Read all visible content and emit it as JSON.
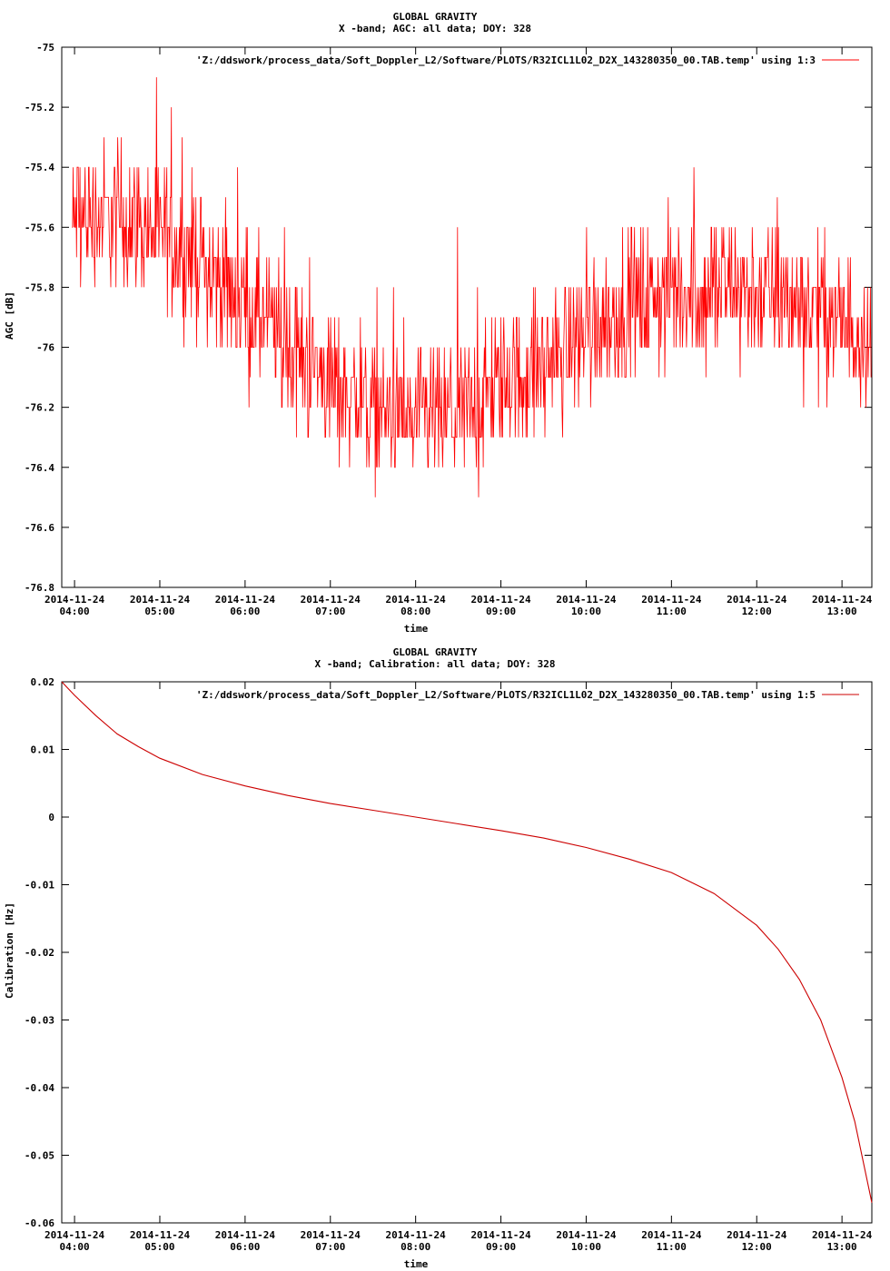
{
  "chart_data": [
    {
      "type": "line",
      "title": "GLOBAL GRAVITY",
      "subtitle": "X -band; AGC: all data; DOY: 328",
      "xlabel": "time",
      "ylabel": "AGC [dB]",
      "ylim": [
        -76.8,
        -75.0
      ],
      "yticks": [
        -75,
        -75.2,
        -75.4,
        -75.6,
        -75.8,
        -76,
        -76.2,
        -76.4,
        -76.6,
        -76.8
      ],
      "ytick_labels": [
        "-75",
        "-75.2",
        "-75.4",
        "-75.6",
        "-75.8",
        "-76",
        "-76.2",
        "-76.4",
        "-76.6",
        "-76.8"
      ],
      "xlim_hours": [
        3.85,
        13.35
      ],
      "xticks_hours": [
        4,
        5,
        6,
        7,
        8,
        9,
        10,
        11,
        12,
        13
      ],
      "xtick_date": "2014-11-24",
      "xtick_times": [
        "04:00",
        "05:00",
        "06:00",
        "07:00",
        "08:00",
        "09:00",
        "10:00",
        "11:00",
        "12:00",
        "13:00"
      ],
      "legend_position": "top-right",
      "color": "#ff0000",
      "series": [
        {
          "name": "'Z:/ddswork/process_data/Soft_Doppler_L2/Software/PLOTS/R32ICL1L02_D2X_143280350_00.TAB.temp' using 1:3",
          "trend_x_hours": [
            3.85,
            4.5,
            5.0,
            5.5,
            6.0,
            6.5,
            7.0,
            7.5,
            8.0,
            8.5,
            9.0,
            9.5,
            10.0,
            10.5,
            11.0,
            11.5,
            12.0,
            12.5,
            13.0,
            13.35
          ],
          "trend_y": [
            -75.6,
            -75.55,
            -75.62,
            -75.72,
            -75.85,
            -76.0,
            -76.12,
            -76.2,
            -76.25,
            -76.22,
            -76.12,
            -76.05,
            -75.95,
            -75.85,
            -75.82,
            -75.8,
            -75.82,
            -75.85,
            -75.92,
            -75.95
          ],
          "noise_range": 0.35,
          "samples": 1400
        }
      ]
    },
    {
      "type": "line",
      "title": "GLOBAL GRAVITY",
      "subtitle": "X -band; Calibration: all data; DOY: 328",
      "xlabel": "time",
      "ylabel": "Calibration [Hz]",
      "ylim": [
        -0.06,
        0.02
      ],
      "yticks": [
        0.02,
        0.01,
        0,
        -0.01,
        -0.02,
        -0.03,
        -0.04,
        -0.05,
        -0.06
      ],
      "ytick_labels": [
        "0.02",
        "0.01",
        "0",
        "-0.01",
        "-0.02",
        "-0.03",
        "-0.04",
        "-0.05",
        "-0.06"
      ],
      "xlim_hours": [
        3.85,
        13.35
      ],
      "xticks_hours": [
        4,
        5,
        6,
        7,
        8,
        9,
        10,
        11,
        12,
        13
      ],
      "xtick_date": "2014-11-24",
      "xtick_times": [
        "04:00",
        "05:00",
        "06:00",
        "07:00",
        "08:00",
        "09:00",
        "10:00",
        "11:00",
        "12:00",
        "13:00"
      ],
      "legend_position": "top-right",
      "color": "#cc0000",
      "series": [
        {
          "name": "'Z:/ddswork/process_data/Soft_Doppler_L2/Software/PLOTS/R32ICL1L02_D2X_143280350_00.TAB.temp' using 1:5",
          "x_hours": [
            3.85,
            4.0,
            4.25,
            4.5,
            4.75,
            5.0,
            5.5,
            6.0,
            6.5,
            7.0,
            7.5,
            8.0,
            8.5,
            9.0,
            9.5,
            10.0,
            10.5,
            11.0,
            11.5,
            12.0,
            12.25,
            12.5,
            12.75,
            13.0,
            13.15,
            13.35
          ],
          "y": [
            0.02,
            0.018,
            0.015,
            0.0123,
            0.0104,
            0.0087,
            0.0063,
            0.0046,
            0.0032,
            0.002,
            0.001,
            0.0,
            -0.001,
            -0.002,
            -0.0031,
            -0.0045,
            -0.0062,
            -0.0082,
            -0.0113,
            -0.016,
            -0.0195,
            -0.024,
            -0.03,
            -0.0385,
            -0.045,
            -0.057
          ]
        }
      ]
    }
  ]
}
